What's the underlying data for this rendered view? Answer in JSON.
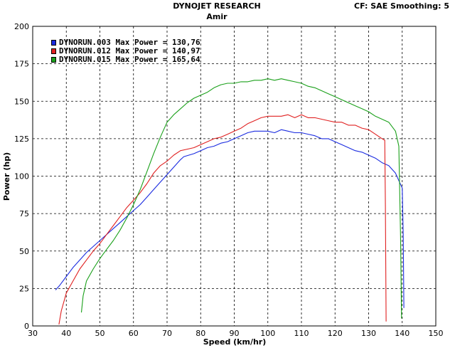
{
  "header": {
    "title": "DYNOJET RESEARCH",
    "subtitle": "Amir",
    "cf_info": "CF: SAE  Smoothing: 5"
  },
  "chart_data": {
    "type": "line",
    "xlabel": "Speed (km/hr)",
    "ylabel": "Power (hp)",
    "xlim": [
      30,
      150
    ],
    "ylim": [
      0,
      200
    ],
    "xticks": [
      30,
      40,
      50,
      60,
      70,
      80,
      90,
      100,
      110,
      120,
      130,
      140,
      150
    ],
    "yticks": [
      0,
      25,
      50,
      75,
      100,
      125,
      150,
      175,
      200
    ],
    "grid": true,
    "legend_position": "top-left",
    "series": [
      {
        "name": "DYNORUN.003 Max Power = 130,76",
        "color": "#1a2be0",
        "points": [
          [
            36.8,
            24
          ],
          [
            38,
            27
          ],
          [
            40,
            33
          ],
          [
            42,
            39
          ],
          [
            44,
            44
          ],
          [
            46,
            49
          ],
          [
            48,
            53
          ],
          [
            50,
            57
          ],
          [
            52,
            61
          ],
          [
            54,
            65
          ],
          [
            56,
            69
          ],
          [
            58,
            73
          ],
          [
            60,
            77
          ],
          [
            62,
            81
          ],
          [
            64,
            86
          ],
          [
            66,
            91
          ],
          [
            68,
            96
          ],
          [
            70,
            101
          ],
          [
            72,
            106
          ],
          [
            74,
            111
          ],
          [
            75,
            113
          ],
          [
            78,
            115
          ],
          [
            80,
            117
          ],
          [
            82,
            119
          ],
          [
            84,
            120
          ],
          [
            86,
            122
          ],
          [
            88,
            123
          ],
          [
            90,
            125
          ],
          [
            92,
            127
          ],
          [
            94,
            129
          ],
          [
            96,
            130
          ],
          [
            98,
            130
          ],
          [
            100,
            130
          ],
          [
            102,
            129
          ],
          [
            104,
            131
          ],
          [
            106,
            130
          ],
          [
            108,
            129
          ],
          [
            110,
            129
          ],
          [
            112,
            128
          ],
          [
            114,
            127
          ],
          [
            116,
            125
          ],
          [
            118,
            125
          ],
          [
            120,
            123
          ],
          [
            122,
            121
          ],
          [
            124,
            119
          ],
          [
            126,
            117
          ],
          [
            128,
            116
          ],
          [
            130,
            114
          ],
          [
            132,
            112
          ],
          [
            134,
            109
          ],
          [
            136,
            107
          ],
          [
            138,
            102
          ],
          [
            139,
            97
          ],
          [
            140,
            92
          ],
          [
            140.3,
            60
          ],
          [
            140.5,
            12
          ]
        ]
      },
      {
        "name": "DYNORUN.012 Max Power = 140,97",
        "color": "#e02020",
        "points": [
          [
            37.8,
            1
          ],
          [
            38.5,
            10
          ],
          [
            40,
            22
          ],
          [
            42,
            30
          ],
          [
            44,
            38
          ],
          [
            46,
            44
          ],
          [
            48,
            50
          ],
          [
            50,
            55
          ],
          [
            52,
            61
          ],
          [
            54,
            67
          ],
          [
            56,
            73
          ],
          [
            58,
            79
          ],
          [
            60,
            84
          ],
          [
            62,
            89
          ],
          [
            64,
            95
          ],
          [
            66,
            102
          ],
          [
            68,
            107
          ],
          [
            70,
            110
          ],
          [
            72,
            114
          ],
          [
            74,
            117
          ],
          [
            76,
            118
          ],
          [
            78,
            119
          ],
          [
            80,
            121
          ],
          [
            82,
            123
          ],
          [
            84,
            125
          ],
          [
            86,
            126
          ],
          [
            88,
            128
          ],
          [
            90,
            130
          ],
          [
            92,
            132
          ],
          [
            94,
            135
          ],
          [
            96,
            137
          ],
          [
            98,
            139
          ],
          [
            100,
            140
          ],
          [
            102,
            140
          ],
          [
            104,
            140
          ],
          [
            106,
            141
          ],
          [
            108,
            139
          ],
          [
            110,
            141
          ],
          [
            112,
            139
          ],
          [
            114,
            139
          ],
          [
            116,
            138
          ],
          [
            118,
            137
          ],
          [
            120,
            136
          ],
          [
            122,
            136
          ],
          [
            124,
            134
          ],
          [
            126,
            134
          ],
          [
            128,
            132
          ],
          [
            130,
            131
          ],
          [
            132,
            128
          ],
          [
            134,
            125
          ],
          [
            134.8,
            124
          ],
          [
            135,
            80
          ],
          [
            135.2,
            3
          ]
        ]
      },
      {
        "name": "DYNORUN.015 Max Power = 165,64",
        "color": "#1aa01a",
        "points": [
          [
            44.5,
            9
          ],
          [
            45,
            20
          ],
          [
            46,
            30
          ],
          [
            48,
            38
          ],
          [
            50,
            45
          ],
          [
            52,
            51
          ],
          [
            54,
            57
          ],
          [
            56,
            64
          ],
          [
            58,
            72
          ],
          [
            60,
            81
          ],
          [
            62,
            91
          ],
          [
            64,
            103
          ],
          [
            66,
            115
          ],
          [
            68,
            126
          ],
          [
            70,
            136
          ],
          [
            72,
            141
          ],
          [
            74,
            145
          ],
          [
            76,
            149
          ],
          [
            78,
            152
          ],
          [
            80,
            154
          ],
          [
            82,
            156
          ],
          [
            84,
            159
          ],
          [
            86,
            161
          ],
          [
            88,
            162
          ],
          [
            90,
            162
          ],
          [
            92,
            163
          ],
          [
            94,
            163
          ],
          [
            96,
            164
          ],
          [
            98,
            164
          ],
          [
            100,
            165
          ],
          [
            102,
            164
          ],
          [
            104,
            165
          ],
          [
            106,
            164
          ],
          [
            108,
            163
          ],
          [
            110,
            162
          ],
          [
            112,
            160
          ],
          [
            114,
            159
          ],
          [
            116,
            157
          ],
          [
            118,
            155
          ],
          [
            120,
            153
          ],
          [
            122,
            151
          ],
          [
            124,
            149
          ],
          [
            126,
            147
          ],
          [
            128,
            145
          ],
          [
            130,
            143
          ],
          [
            132,
            140
          ],
          [
            134,
            138
          ],
          [
            136,
            136
          ],
          [
            138,
            130
          ],
          [
            139,
            120
          ],
          [
            139.5,
            60
          ],
          [
            139.8,
            5
          ]
        ]
      }
    ]
  }
}
